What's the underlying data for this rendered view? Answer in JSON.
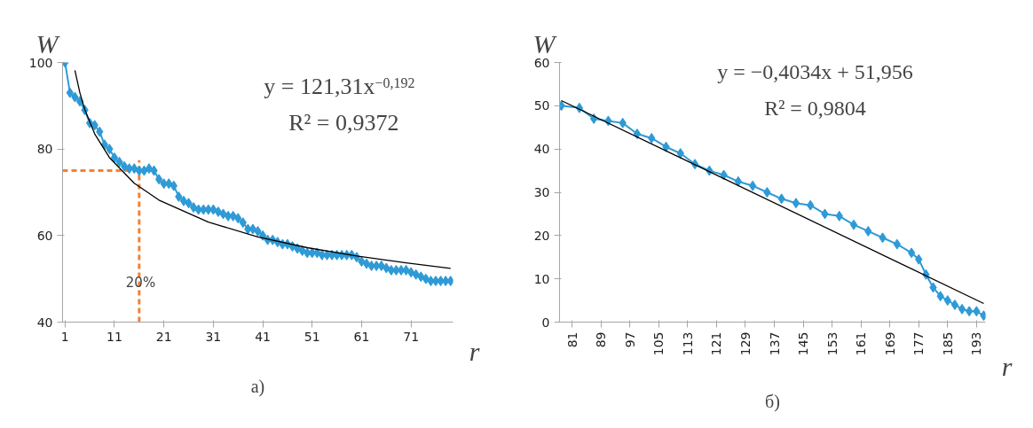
{
  "chart_data": [
    {
      "type": "line",
      "title": "а)",
      "xlabel": "r",
      "ylabel": "W",
      "xlim": [
        0.5,
        79.5
      ],
      "xticks": [
        1,
        11,
        21,
        31,
        41,
        51,
        61,
        71
      ],
      "ylim": [
        40,
        100
      ],
      "yticks": [
        40,
        60,
        80,
        100
      ],
      "grid": false,
      "marker": "diamond",
      "series": [
        {
          "color": "#2e9ad6",
          "x": [
            1,
            2,
            3,
            4,
            5,
            6,
            7,
            8,
            9,
            10,
            11,
            12,
            13,
            14,
            15,
            16,
            17,
            18,
            19,
            20,
            21,
            22,
            23,
            24,
            25,
            26,
            27,
            28,
            29,
            30,
            31,
            32,
            33,
            34,
            35,
            36,
            37,
            38,
            39,
            40,
            41,
            42,
            43,
            44,
            45,
            46,
            47,
            48,
            49,
            50,
            51,
            52,
            53,
            54,
            55,
            56,
            57,
            58,
            59,
            60,
            61,
            62,
            63,
            64,
            65,
            66,
            67,
            68,
            69,
            70,
            71,
            72,
            73,
            74,
            75,
            76,
            77,
            78,
            79
          ],
          "values": [
            100,
            93,
            92,
            91,
            89,
            86,
            85.5,
            84,
            81,
            80,
            78,
            77,
            76,
            75.5,
            75.5,
            75,
            75,
            75.5,
            75,
            73,
            72,
            72,
            71.5,
            69,
            68,
            67.5,
            66.5,
            66,
            66,
            66,
            66,
            65.5,
            65,
            64.5,
            64.5,
            64,
            63,
            61.5,
            61.5,
            61,
            60,
            59,
            59,
            58.5,
            58,
            58,
            57.5,
            57,
            56.5,
            56,
            56,
            56,
            55.5,
            55.5,
            55.5,
            55.5,
            55.5,
            55.5,
            55.5,
            55,
            54,
            53.5,
            53,
            53,
            53,
            52.5,
            52,
            52,
            52,
            52,
            51.5,
            51,
            50.5,
            50,
            49.5,
            49.5,
            49.5,
            49.5,
            49.5
          ]
        },
        {
          "type": "line",
          "color": "#000000",
          "marker": "none",
          "x": [
            3,
            4,
            5,
            7,
            10,
            15,
            20,
            30,
            40,
            50,
            60,
            70,
            79
          ],
          "values": [
            98.2,
            93,
            89.1,
            83.5,
            78,
            72.1,
            68.2,
            63.1,
            59.7,
            57.2,
            55.3,
            53.7,
            52.4
          ]
        }
      ],
      "ref_lines": [
        {
          "axis": "y",
          "value": 75,
          "color": "#f58231",
          "line_style": "dashed"
        },
        {
          "axis": "x",
          "value": 16,
          "color": "#f58231",
          "line_style": "dashed"
        }
      ],
      "annotations": [
        "y = 121,31x$^{−0,192}$",
        "R² = 0,9372",
        "20%"
      ]
    },
    {
      "type": "line",
      "title": "б)",
      "xlabel": "r",
      "ylabel": "W",
      "xlim": [
        77.5,
        195.5
      ],
      "xticks": [
        81,
        89,
        97,
        105,
        113,
        121,
        129,
        137,
        145,
        153,
        161,
        169,
        177,
        185,
        193
      ],
      "ylim": [
        0,
        60
      ],
      "yticks": [
        0,
        10,
        20,
        30,
        40,
        50,
        60
      ],
      "grid": false,
      "marker": "diamond",
      "series": [
        {
          "color": "#2e9ad6",
          "x": [
            78,
            83,
            87,
            91,
            95,
            99,
            103,
            107,
            111,
            115,
            119,
            123,
            127,
            131,
            135,
            139,
            143,
            147,
            151,
            155,
            159,
            163,
            167,
            171,
            175,
            177,
            179,
            181,
            183,
            185,
            187,
            189,
            191,
            193,
            195
          ],
          "values": [
            50,
            49.5,
            47,
            46.5,
            46,
            43.5,
            42.5,
            40.5,
            39,
            36.5,
            35,
            34,
            32.5,
            31.5,
            30,
            28.5,
            27.5,
            27,
            25,
            24.5,
            22.5,
            21,
            19.5,
            18,
            16,
            14.5,
            11,
            8,
            6,
            5,
            4,
            3,
            2.5,
            2.5,
            1.5
          ]
        },
        {
          "type": "line",
          "color": "#000000",
          "marker": "none",
          "x": [
            78,
            195
          ],
          "values": [
            51.2,
            4.3
          ]
        }
      ],
      "annotations": [
        "y = −0,4034x + 51,956",
        "R² = 0,9804"
      ]
    }
  ]
}
